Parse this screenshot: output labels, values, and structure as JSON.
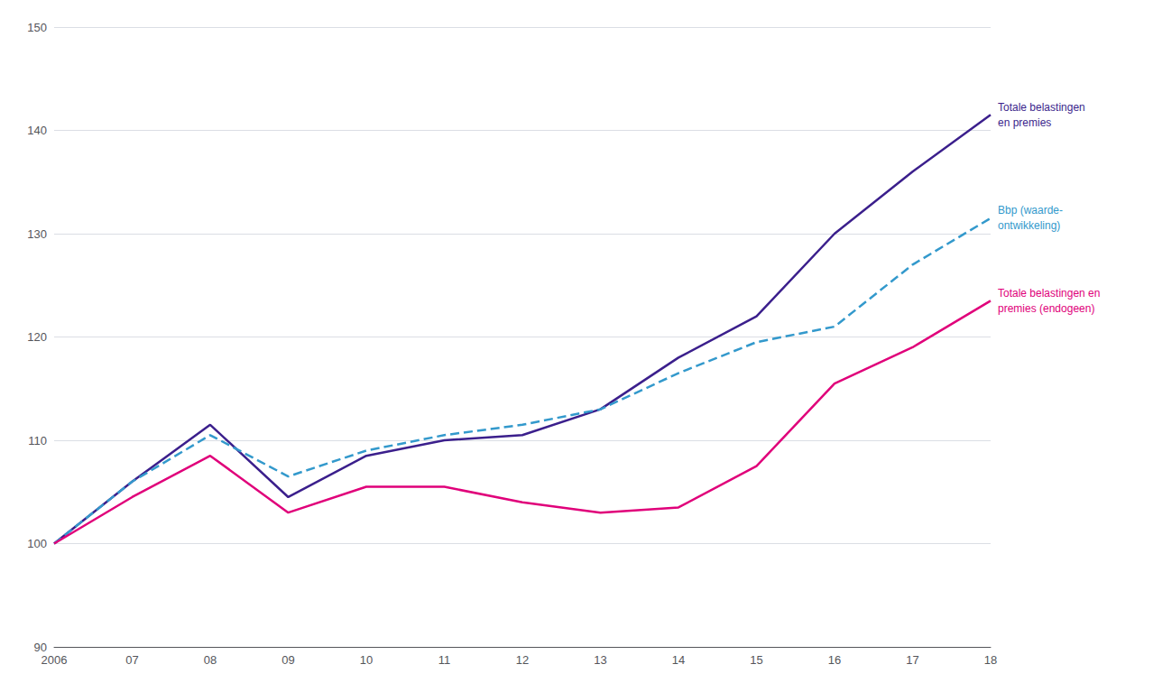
{
  "chart_data": {
    "type": "line",
    "categories": [
      "2006",
      "07",
      "08",
      "09",
      "10",
      "11",
      "12",
      "13",
      "14",
      "15",
      "16",
      "17",
      "18"
    ],
    "series": [
      {
        "name": "Totale belastingen\nen premies",
        "color": "#3B1F8C",
        "line_style": "solid",
        "values": [
          100,
          106,
          111.5,
          104.5,
          108.5,
          110,
          110.5,
          113,
          118,
          122,
          130,
          136,
          141.5
        ]
      },
      {
        "name": "Bbp (waarde-\nontwikkeling)",
        "color": "#3399CC",
        "line_style": "dashed",
        "values": [
          100,
          106,
          110.5,
          106.5,
          109,
          110.5,
          111.5,
          113,
          116.5,
          119.5,
          121,
          127,
          131.5
        ]
      },
      {
        "name": "Totale belastingen en\npremies (endogeen)",
        "color": "#E0007A",
        "line_style": "solid",
        "values": [
          100,
          104.5,
          108.5,
          103,
          105.5,
          105.5,
          104,
          103,
          103.5,
          107.5,
          115.5,
          119,
          123.5
        ]
      }
    ],
    "ylim": [
      90,
      150
    ],
    "yticks": [
      90,
      100,
      110,
      120,
      130,
      140,
      150
    ],
    "grid": true
  }
}
